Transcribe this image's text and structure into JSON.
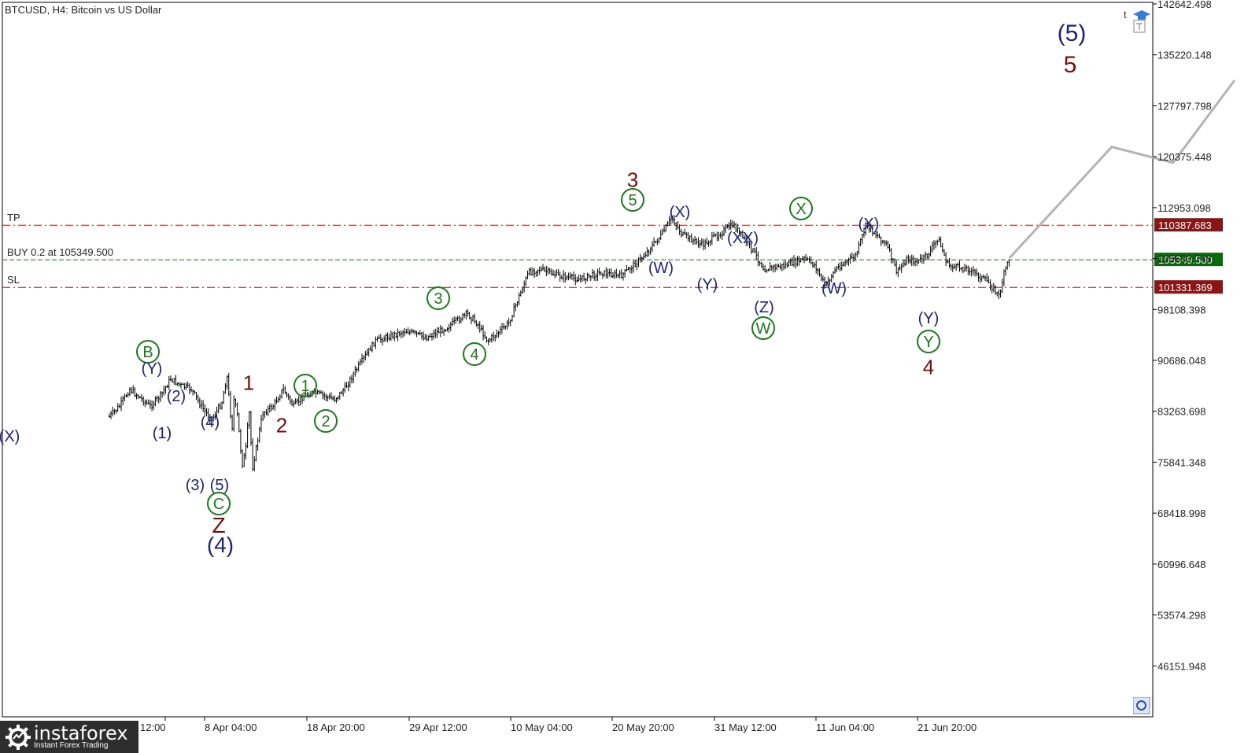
{
  "header": {
    "title": "BTCUSD, H4:  Bitcoin vs US Dollar"
  },
  "logo": {
    "name": "instaforex",
    "tagline": "Instant Forex Trading"
  },
  "corner": {
    "t_label": "t"
  },
  "colors": {
    "candle": "#000000",
    "forecast": "#b4b4b4",
    "tp_line": "#a01818",
    "buy_line": "#1b7a1b",
    "sl_line": "#a01818",
    "tp_badge": "#8b1414",
    "buy_badge": "#0a6a0a",
    "sl_badge": "#8b1414",
    "navy": "#1a237e",
    "green": "#1b7a1b",
    "maroon": "#7a0e0e"
  },
  "chart_data": {
    "type": "candlestick",
    "symbol": "BTCUSD",
    "timeframe": "H4",
    "title": "BTCUSD, H4:  Bitcoin vs US Dollar",
    "ylim": [
      38730.398,
      142642.498
    ],
    "y_ticks": [
      "142642.498",
      "135220.148",
      "127797.798",
      "120375.448",
      "112953.098",
      "105530.748",
      "98108.398",
      "90686.048",
      "83263.698",
      "75841.348",
      "68418.998",
      "60996.648",
      "53574.298",
      "46151.948"
    ],
    "x_ticks": [
      "12:00",
      "8 Apr 04:00",
      "18 Apr 20:00",
      "29 Apr 12:00",
      "10 May 04:00",
      "20 May 20:00",
      "31 May 12:00",
      "11 Jun 04:00",
      "21 Jun 20:00"
    ],
    "levels": [
      {
        "name": "TP",
        "label": "TP",
        "value": 110387.683,
        "badge": "110387.683",
        "style": "dashdot"
      },
      {
        "name": "BUY",
        "label": "BUY 0.2 at 105349.500",
        "value": 105349.5,
        "badge": "105349.500",
        "style": "dashed"
      },
      {
        "name": "SL",
        "label": "SL",
        "value": 101331.369,
        "badge": "101331.369",
        "style": "dashdot"
      }
    ],
    "price_path": [
      [
        "Mar 27",
        82500
      ],
      [
        "Mar 28",
        84000
      ],
      [
        "Mar 29",
        86500
      ],
      [
        "Mar 31",
        84000
      ],
      [
        "Apr 1",
        85500
      ],
      [
        "Apr 2",
        88000
      ],
      [
        "Apr 3",
        87000
      ],
      [
        "Apr 4",
        86500
      ],
      [
        "Apr 5",
        84000
      ],
      [
        "Apr 6",
        82000
      ],
      [
        "Apr 7",
        84500
      ],
      [
        "Apr 7 12:00",
        88500
      ],
      [
        "Apr 8",
        80500
      ],
      [
        "Apr 8 04:00",
        85000
      ],
      [
        "Apr 8 12:00",
        83000
      ],
      [
        "Apr 9",
        75500
      ],
      [
        "Apr 9 08:00",
        77500
      ],
      [
        "Apr 9 16:00",
        83500
      ],
      [
        "Apr 10",
        75000
      ],
      [
        "Apr 11",
        83000
      ],
      [
        "Apr 12",
        84000
      ],
      [
        "Apr 13",
        86500
      ],
      [
        "Apr 14",
        84000
      ],
      [
        "Apr 15",
        85500
      ],
      [
        "Apr 16",
        86000
      ],
      [
        "Apr 17",
        85500
      ],
      [
        "Apr 18",
        85000
      ],
      [
        "Apr 19",
        86500
      ],
      [
        "Apr 20",
        89000
      ],
      [
        "Apr 22",
        93500
      ],
      [
        "Apr 23",
        94000
      ],
      [
        "Apr 25",
        95000
      ],
      [
        "Apr 27",
        94000
      ],
      [
        "Apr 29",
        95500
      ],
      [
        "May 1",
        97500
      ],
      [
        "May 2",
        96000
      ],
      [
        "May 3",
        93500
      ],
      [
        "May 5",
        96000
      ],
      [
        "May 7",
        103500
      ],
      [
        "May 8",
        104000
      ],
      [
        "May 10",
        103000
      ],
      [
        "May 12",
        102500
      ],
      [
        "May 14",
        103500
      ],
      [
        "May 16",
        103000
      ],
      [
        "May 18",
        105500
      ],
      [
        "May 20",
        109000
      ],
      [
        "May 21",
        111500
      ],
      [
        "May 22",
        109000
      ],
      [
        "May 24",
        107500
      ],
      [
        "May 26",
        109500
      ],
      [
        "May 27",
        110500
      ],
      [
        "May 29",
        106500
      ],
      [
        "May 30",
        104000
      ],
      [
        "Jun 1",
        104500
      ],
      [
        "Jun 3",
        105500
      ],
      [
        "Jun 4",
        104500
      ],
      [
        "Jun 5",
        101500
      ],
      [
        "Jun 6",
        104000
      ],
      [
        "Jun 8",
        106000
      ],
      [
        "Jun 9",
        110500
      ],
      [
        "Jun 10",
        109000
      ],
      [
        "Jun 11",
        107500
      ],
      [
        "Jun 12",
        103500
      ],
      [
        "Jun 13",
        105500
      ],
      [
        "Jun 14",
        105000
      ],
      [
        "Jun 15",
        106000
      ],
      [
        "Jun 16",
        108500
      ],
      [
        "Jun 17",
        104500
      ],
      [
        "Jun 19",
        104000
      ],
      [
        "Jun 20",
        103000
      ],
      [
        "Jun 21",
        102000
      ],
      [
        "Jun 22",
        100000
      ],
      [
        "Jun 22 12:00",
        103500
      ],
      [
        "Jun 23",
        105500
      ]
    ],
    "forecast_path": [
      [
        "Jun 23",
        105600
      ],
      [
        "Jul 3",
        121800
      ],
      [
        "Jul 9",
        119500
      ],
      [
        "Jul 15",
        131500
      ]
    ],
    "wave_labels": [
      {
        "text": "(X)",
        "color": "navy",
        "circled": false,
        "size": 20
      },
      {
        "text": "B",
        "color": "green",
        "circled": true,
        "size": 20
      },
      {
        "text": "(Y)",
        "color": "navy",
        "circled": false,
        "size": 20
      },
      {
        "text": "(1)",
        "color": "navy",
        "circled": false,
        "size": 20
      },
      {
        "text": "(2)",
        "color": "navy",
        "circled": false,
        "size": 20
      },
      {
        "text": "(3)",
        "color": "navy",
        "circled": false,
        "size": 20
      },
      {
        "text": "(4)",
        "color": "navy",
        "circled": false,
        "size": 20
      },
      {
        "text": "(5)",
        "color": "navy",
        "circled": false,
        "size": 20
      },
      {
        "text": "C",
        "color": "green",
        "circled": true,
        "size": 20
      },
      {
        "text": "Z",
        "color": "maroon",
        "circled": false,
        "size": 28
      },
      {
        "text": "(4)",
        "color": "navy",
        "circled": false,
        "size": 28
      },
      {
        "text": "1",
        "color": "maroon",
        "circled": false,
        "size": 26
      },
      {
        "text": "2",
        "color": "maroon",
        "circled": false,
        "size": 26
      },
      {
        "text": "1",
        "color": "green",
        "circled": true,
        "size": 20
      },
      {
        "text": "2",
        "color": "green",
        "circled": true,
        "size": 20
      },
      {
        "text": "3",
        "color": "green",
        "circled": true,
        "size": 20
      },
      {
        "text": "4",
        "color": "green",
        "circled": true,
        "size": 20
      },
      {
        "text": "3",
        "color": "maroon",
        "circled": false,
        "size": 26
      },
      {
        "text": "5",
        "color": "green",
        "circled": true,
        "size": 20
      },
      {
        "text": "(X)",
        "color": "navy",
        "circled": false,
        "size": 20
      },
      {
        "text": "(W)",
        "color": "navy",
        "circled": false,
        "size": 20
      },
      {
        "text": "(Y)",
        "color": "navy",
        "circled": false,
        "size": 20
      },
      {
        "text": "(XX)",
        "color": "navy",
        "circled": false,
        "size": 20
      },
      {
        "text": "(Z)",
        "color": "navy",
        "circled": false,
        "size": 20
      },
      {
        "text": "W",
        "color": "green",
        "circled": true,
        "size": 20
      },
      {
        "text": "X",
        "color": "green",
        "circled": true,
        "size": 20
      },
      {
        "text": "(X)",
        "color": "navy",
        "circled": false,
        "size": 20
      },
      {
        "text": "(W)",
        "color": "navy",
        "circled": false,
        "size": 20
      },
      {
        "text": "(Y)",
        "color": "navy",
        "circled": false,
        "size": 20
      },
      {
        "text": "Y",
        "color": "green",
        "circled": true,
        "size": 20
      },
      {
        "text": "4",
        "color": "maroon",
        "circled": false,
        "size": 26
      },
      {
        "text": "(5)",
        "color": "navy",
        "circled": false,
        "size": 30
      },
      {
        "text": "5",
        "color": "maroon",
        "circled": false,
        "size": 30
      }
    ]
  }
}
